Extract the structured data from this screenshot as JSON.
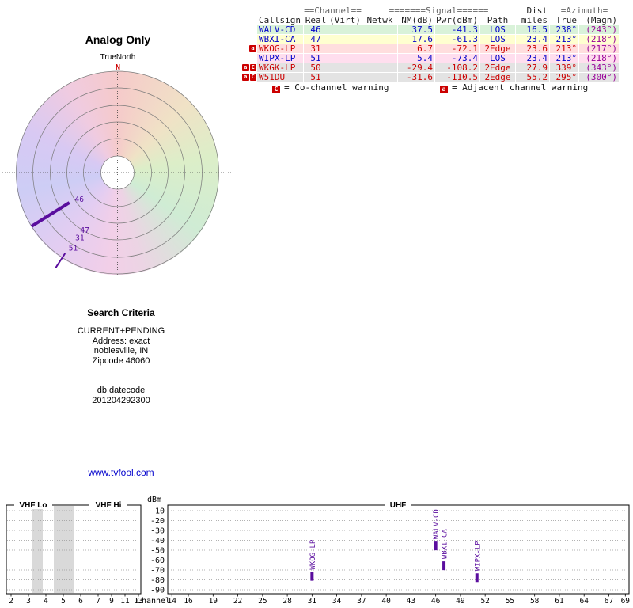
{
  "polar": {
    "title": "Analog Only",
    "true_north_label": "TrueNorth",
    "north_marker": "N",
    "line_color": "#5a0d9e",
    "label_color": "#5a0d9e",
    "stations": [
      {
        "label": "46",
        "azimuth_deg": 238,
        "label_at": 0.5,
        "line": {
          "from": 0.56,
          "to": 1.0,
          "width": 4
        }
      },
      {
        "label": "47",
        "azimuth_deg": 213,
        "label_at": 0.68
      },
      {
        "label": "31",
        "azimuth_deg": 213,
        "label_at": 0.77
      },
      {
        "label": "51",
        "azimuth_deg": 213,
        "label_at": 0.89,
        "line": {
          "from": 0.95,
          "to": 1.12,
          "width": 2
        }
      }
    ]
  },
  "table": {
    "group_headers": {
      "channel": "==Channel==",
      "signal": "=======Signal======",
      "dist": "Dist",
      "azimuth": "=Azimuth="
    },
    "columns": {
      "callsign": "Callsign",
      "real": "Real",
      "virt": "(Virt)",
      "netwk": "Netwk",
      "nm": "NM(dB)",
      "pwr": "Pwr(dBm)",
      "path": "Path",
      "miles": "miles",
      "true": "True",
      "magn": "(Magn)"
    },
    "magn_color": "#990099",
    "rows": [
      {
        "warnings": [],
        "callsign": "WALV-CD",
        "real": "46",
        "virt": "",
        "netwk": "",
        "nm": "37.5",
        "pwr": "-41.3",
        "path": "LOS",
        "miles": "16.5",
        "true_az": "238°",
        "magn": "(243°)",
        "bg": "#d9f2d9",
        "fg": "#0000cc"
      },
      {
        "warnings": [],
        "callsign": "WBXI-CA",
        "real": "47",
        "virt": "",
        "netwk": "",
        "nm": "17.6",
        "pwr": "-61.3",
        "path": "LOS",
        "miles": "23.4",
        "true_az": "213°",
        "magn": "(218°)",
        "bg": "#ffffd0",
        "fg": "#0000cc"
      },
      {
        "warnings": [
          "a"
        ],
        "callsign": "WKOG-LP",
        "real": "31",
        "virt": "",
        "netwk": "",
        "nm": "6.7",
        "pwr": "-72.1",
        "path": "2Edge",
        "miles": "23.6",
        "true_az": "213°",
        "magn": "(217°)",
        "bg": "#ffdede",
        "fg": "#cc0000"
      },
      {
        "warnings": [],
        "callsign": "WIPX-LP",
        "real": "51",
        "virt": "",
        "netwk": "",
        "nm": "5.4",
        "pwr": "-73.4",
        "path": "LOS",
        "miles": "23.4",
        "true_az": "213°",
        "magn": "(218°)",
        "bg": "#ffdeee",
        "fg": "#0000cc"
      },
      {
        "warnings": [
          "a",
          "C"
        ],
        "callsign": "WKGK-LP",
        "real": "50",
        "virt": "",
        "netwk": "",
        "nm": "-29.4",
        "pwr": "-108.2",
        "path": "2Edge",
        "miles": "27.9",
        "true_az": "339°",
        "magn": "(343°)",
        "bg": "#e3e3e3",
        "fg": "#cc0000"
      },
      {
        "warnings": [
          "a",
          "C"
        ],
        "callsign": "W51DU",
        "real": "51",
        "virt": "",
        "netwk": "",
        "nm": "-31.6",
        "pwr": "-110.5",
        "path": "2Edge",
        "miles": "55.2",
        "true_az": "295°",
        "magn": "(300°)",
        "bg": "#e3e3e3",
        "fg": "#cc0000"
      }
    ]
  },
  "legend": {
    "co_icon": "C",
    "co_text": "= Co-channel warning",
    "adj_icon": "a",
    "adj_text": "= Adjacent channel warning"
  },
  "search": {
    "title": "Search Criteria",
    "lines": [
      "CURRENT+PENDING",
      "Address: exact",
      "noblesville, IN",
      "Zipcode 46060"
    ],
    "db_label": "db datecode",
    "db_value": "201204292300"
  },
  "footer_link": "www.tvfool.com",
  "chart_data": {
    "type": "scatter",
    "title": "",
    "xlabel": "Channel",
    "ylabel": "dBm",
    "ylim": [
      -90,
      -10
    ],
    "grid": "dotted",
    "marker_color": "#5a0d9e",
    "yticks": [
      -10,
      -20,
      -30,
      -40,
      -50,
      -60,
      -70,
      -80,
      -90
    ],
    "band_labels": [
      "VHF Lo",
      "VHF Hi",
      "UHF"
    ],
    "vhf_xticks": [
      2,
      3,
      4,
      5,
      6,
      7,
      9,
      11,
      13
    ],
    "uhf_xticks": [
      14,
      16,
      19,
      22,
      25,
      28,
      31,
      34,
      37,
      40,
      43,
      46,
      49,
      52,
      55,
      58,
      61,
      64,
      67,
      69
    ],
    "points": [
      {
        "callsign": "WKOG-LP",
        "channel": 31,
        "power_dbm": -72.1
      },
      {
        "callsign": "WALV-CD",
        "channel": 46,
        "power_dbm": -41.3
      },
      {
        "callsign": "WBXI-CA",
        "channel": 47,
        "power_dbm": -61.3
      },
      {
        "callsign": "WIPX-LP",
        "channel": 51,
        "power_dbm": -73.4
      }
    ]
  }
}
